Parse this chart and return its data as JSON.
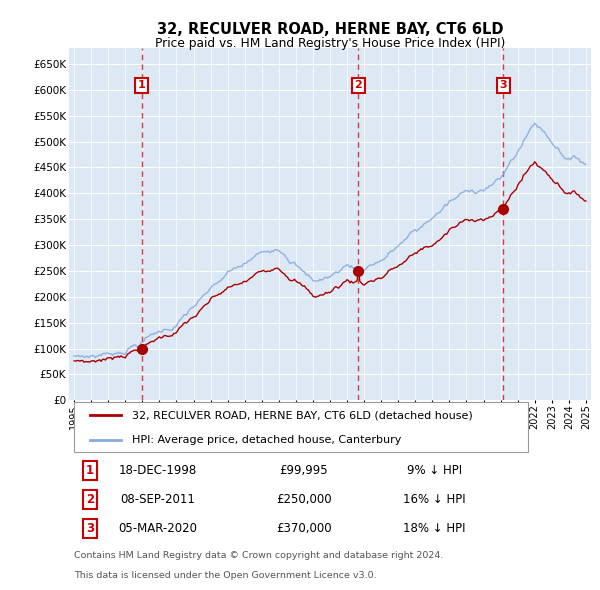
{
  "title": "32, RECULVER ROAD, HERNE BAY, CT6 6LD",
  "subtitle": "Price paid vs. HM Land Registry's House Price Index (HPI)",
  "legend_line1": "32, RECULVER ROAD, HERNE BAY, CT6 6LD (detached house)",
  "legend_line2": "HPI: Average price, detached house, Canterbury",
  "footer_line1": "Contains HM Land Registry data © Crown copyright and database right 2024.",
  "footer_line2": "This data is licensed under the Open Government Licence v3.0.",
  "sales": [
    {
      "num": 1,
      "date": "18-DEC-1998",
      "price": 99995,
      "hpi_diff": "9% ↓ HPI"
    },
    {
      "num": 2,
      "date": "08-SEP-2011",
      "price": 250000,
      "hpi_diff": "16% ↓ HPI"
    },
    {
      "num": 3,
      "date": "05-MAR-2020",
      "price": 370000,
      "hpi_diff": "18% ↓ HPI"
    }
  ],
  "sale_years": [
    1998.958,
    2011.667,
    2020.167
  ],
  "sale_prices": [
    99995,
    250000,
    370000
  ],
  "red_color": "#aa0000",
  "blue_color": "#88aadd",
  "marker_color": "#aa0000",
  "vline_color": "#cc2222",
  "plot_bg": "#dde8f5",
  "grid_color": "#ffffff",
  "box_color": "#cc0000",
  "ylim": [
    0,
    680000
  ],
  "ytick_vals": [
    0,
    50000,
    100000,
    150000,
    200000,
    250000,
    300000,
    350000,
    400000,
    450000,
    500000,
    550000,
    600000,
    650000
  ],
  "xlim": [
    1994.7,
    2025.3
  ],
  "xtick_vals": [
    1995,
    1996,
    1997,
    1998,
    1999,
    2000,
    2001,
    2002,
    2003,
    2004,
    2005,
    2006,
    2007,
    2008,
    2009,
    2010,
    2011,
    2012,
    2013,
    2014,
    2015,
    2016,
    2017,
    2018,
    2019,
    2020,
    2021,
    2022,
    2023,
    2024,
    2025
  ]
}
